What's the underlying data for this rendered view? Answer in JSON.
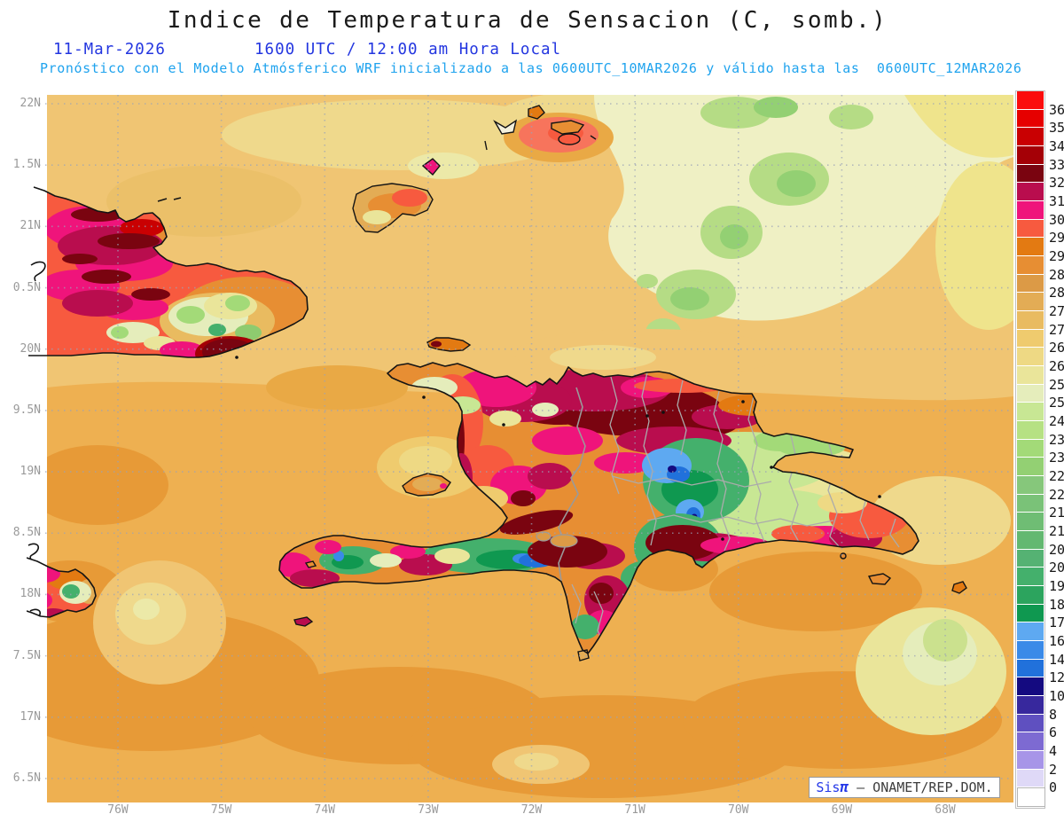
{
  "title": "Indice de Temperatura de Sensacion (C, somb.)",
  "header": {
    "date": "11-Mar-2026",
    "time": "1600 UTC / 12:00 am Hora Local",
    "forecast_line": "Pronóstico con el Modelo Atmósferico WRF inicializado a las 0600UTC_10MAR2026 y válido hasta las  0600UTC_12MAR2026"
  },
  "watermark": {
    "brand": "Sis",
    "pi": "π",
    "org": " – ONAMET/REP.DOM."
  },
  "axes": {
    "lat_labels": [
      "22N",
      "1.5N",
      "21N",
      "0.5N",
      "20N",
      "9.5N",
      "19N",
      "8.5N",
      "18N",
      "7.5N",
      "17N",
      "6.5N"
    ],
    "lon_labels": [
      "76W",
      "75W",
      "74W",
      "73W",
      "72W",
      "71W",
      "70W",
      "69W",
      "68W"
    ]
  },
  "colorbar": {
    "labels": [
      "36",
      "35",
      "34",
      "33",
      "32",
      "31.5",
      "30.7",
      "29.7",
      "29",
      "28.5",
      "28",
      "27.5",
      "27",
      "26.5",
      "26",
      "25.5",
      "25",
      "24",
      "23.5",
      "23",
      "22.5",
      "22",
      "21.5",
      "21",
      "20.5",
      "20",
      "19",
      "18",
      "17",
      "16",
      "14",
      "12",
      "10",
      "8",
      "6",
      "4",
      "2",
      "0"
    ],
    "colors": [
      "#fb0d0d",
      "#e60000",
      "#c90002",
      "#a40006",
      "#7a0410",
      "#b90d4e",
      "#ef147b",
      "#f75a3f",
      "#e37a12",
      "#e78e33",
      "#dc9a46",
      "#e3ac55",
      "#e9bb60",
      "#efcb6e",
      "#eed984",
      "#eae59a",
      "#e5edbb",
      "#c8e794",
      "#b6e183",
      "#a3da78",
      "#93d073",
      "#86c77b",
      "#7ac278",
      "#6fbd74",
      "#63b871",
      "#55b273",
      "#44b06c",
      "#2ca45e",
      "#0f9850",
      "#5ea9f1",
      "#3a8ae8",
      "#2171db",
      "#140a80",
      "#37289d",
      "#5f50c0",
      "#7d6ad2",
      "#a795e8",
      "#dfd9f7",
      "#ffffff"
    ]
  },
  "chart_data": {
    "type": "heatmap",
    "title": "Indice de Temperatura de Sensacion (C, somb.)",
    "variable": "heat index in shade",
    "units": "C",
    "valid_time": "11-Mar-2026 1600 UTC / 12:00 am Hora Local",
    "model": "WRF",
    "initialized": "0600UTC_10MAR2026",
    "valid_until": "0600UTC_12MAR2026",
    "region": {
      "lon_range": [
        "76.7W",
        "67.4W"
      ],
      "lat_range": [
        "16.3N",
        "22.1N"
      ],
      "area": "Hispaniola, eastern Cuba, Jamaica tip, Turks & Caicos, Mona"
    },
    "scale_levels": [
      0,
      2,
      4,
      6,
      8,
      10,
      12,
      14,
      16,
      17,
      18,
      19,
      20,
      20.5,
      21,
      21.5,
      22,
      22.5,
      23,
      23.5,
      24,
      25,
      25.5,
      26,
      26.5,
      27,
      27.5,
      28,
      28.5,
      29,
      29.7,
      30.7,
      31.5,
      32,
      33,
      34,
      35,
      36
    ],
    "observed_values": {
      "open_ocean": "27-29",
      "eastern_cuba_lowlands": "29.7-34",
      "haiti_north_and_coasts": "30.7-34",
      "cordillera_central_peaks": "8-16",
      "interior_mountains": "17-25",
      "cibao_valley_and_east_dr_interior": "24-27",
      "southern_dr_coast": "29.7-33",
      "turks_and_caicos": "29-30.7"
    },
    "legend_position": "right",
    "grid": "dotted, 0.5 deg latitude / 1 deg longitude"
  }
}
